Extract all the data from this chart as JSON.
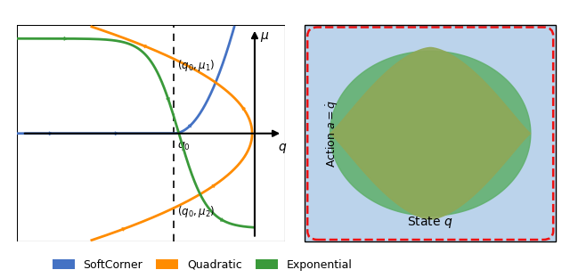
{
  "left_panel": {
    "blue_color": "#4472C4",
    "orange_color": "#FF8C00",
    "green_color": "#3A9A3A",
    "axis_color": "#111111",
    "q0_x": -0.4,
    "axis_y_x": 1.2,
    "xlim": [
      -3.5,
      1.8
    ],
    "ylim": [
      -3.2,
      3.2
    ]
  },
  "right_panel": {
    "blue_fill": "#B0CCE8",
    "green_fill": "#5FAF6A",
    "olive_fill": "#8FA858",
    "red_dashed": "#EE1111",
    "label_action": "Action $a = \\dot{q}$",
    "label_state": "State $q$"
  },
  "legend": {
    "softcorner_color": "#4472C4",
    "quadratic_color": "#FF8C00",
    "exponential_color": "#3A9A3A",
    "labels": [
      "SoftCorner",
      "Quadratic",
      "Exponential"
    ]
  },
  "fig_background": "#FFFFFF"
}
